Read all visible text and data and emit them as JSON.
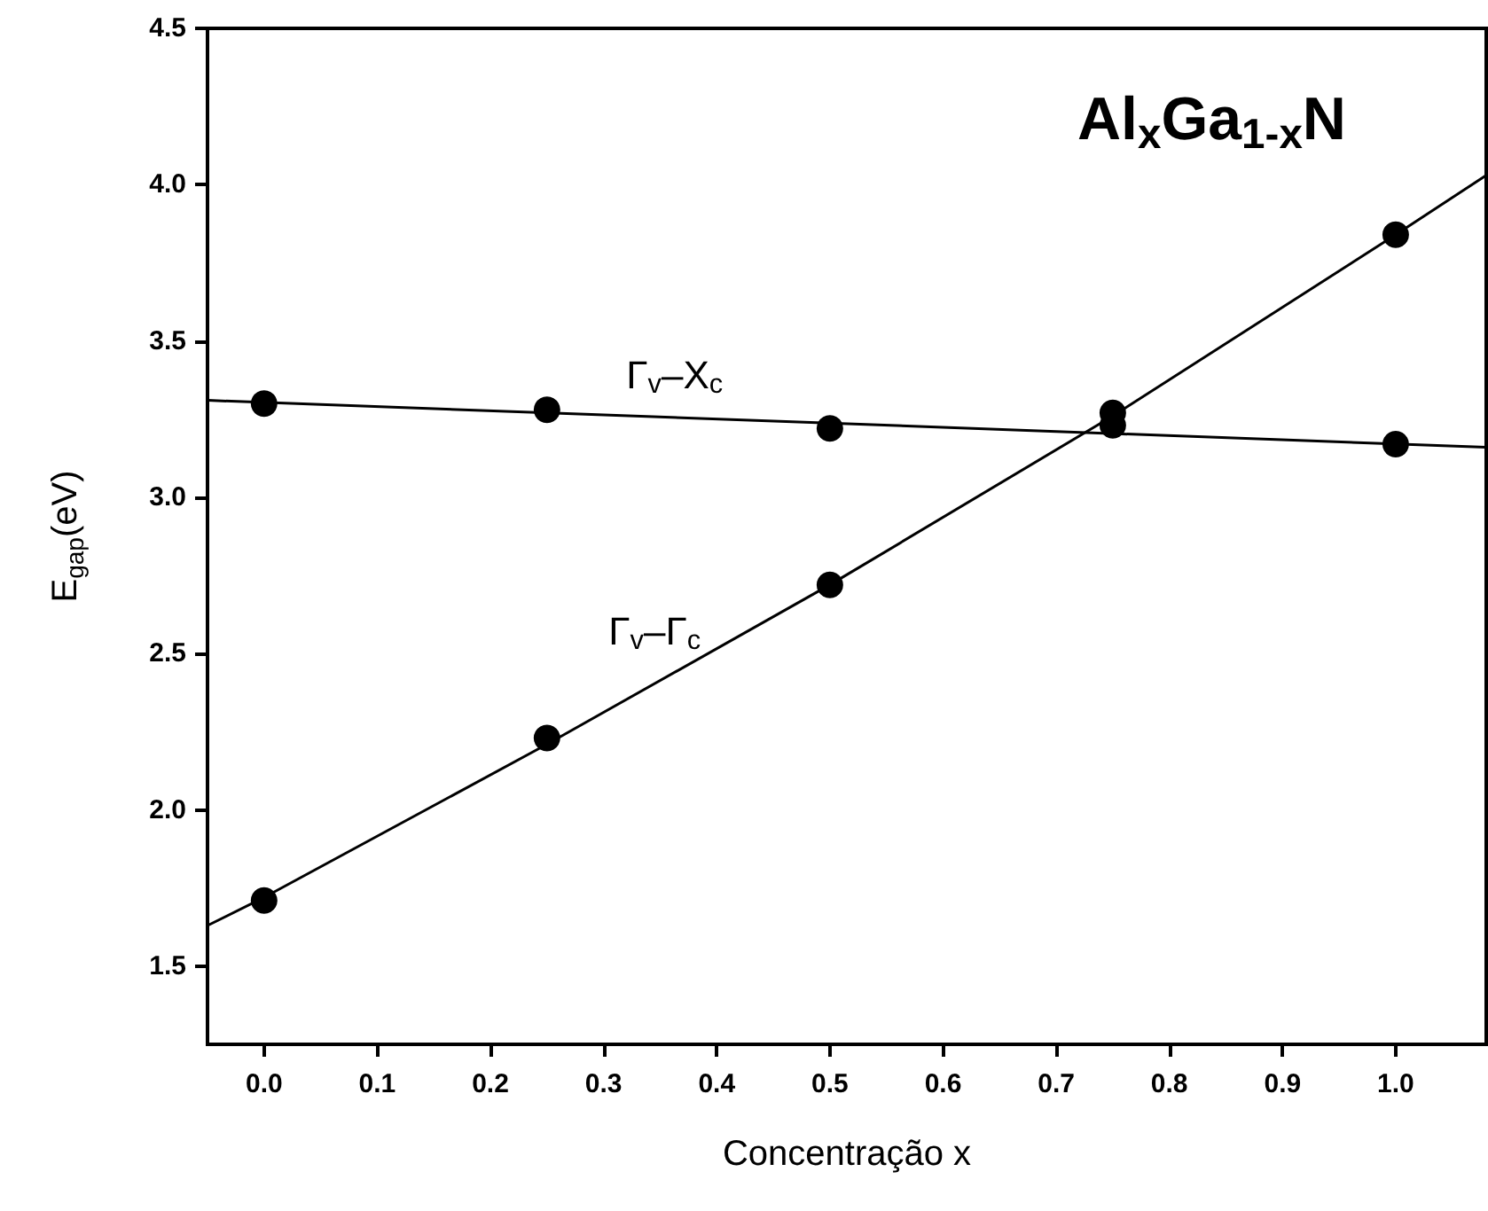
{
  "chart_data": {
    "type": "scatter",
    "title": "Al$_{x}$Ga$_{1-x}$N",
    "xlabel": "Concentração x",
    "ylabel": "E$_{gap}$(eV)",
    "xlim": [
      -0.05,
      1.08
    ],
    "xticks": [
      {
        "value": 0,
        "label": "0.0"
      },
      0.1,
      0.2,
      0.3,
      0.4,
      0.5,
      0.6,
      0.7,
      0.8,
      0.9,
      {
        "value": 1,
        "label": "1.0"
      }
    ],
    "ylim": [
      1.25,
      4.5
    ],
    "yticks": [
      1.5,
      {
        "value": 2,
        "label": "2.0"
      },
      2.5,
      {
        "value": 3,
        "label": "3.0"
      },
      3.5,
      {
        "value": 4,
        "label": "4.0"
      },
      4.5
    ],
    "grid": false,
    "legend": false,
    "marker": "circle",
    "series": [
      {
        "name": "Γ$_{v}$–X$_{c}$",
        "color": "#000000",
        "x": [
          0,
          0.25,
          0.5,
          0.75,
          1.0
        ],
        "values": [
          3.3,
          3.28,
          3.22,
          3.23,
          3.17
        ]
      },
      {
        "name": "Γ$_{v}$–Γ$_{c}$",
        "color": "#000000",
        "x": [
          0,
          0.25,
          0.5,
          0.75,
          1.0
        ],
        "values": [
          1.71,
          2.23,
          2.72,
          3.27,
          3.84
        ]
      },
      {
        "type": "line",
        "color": "#000000",
        "marker": "none",
        "line_style": "solid",
        "x": [
          -0.05,
          1.08
        ],
        "values": [
          3.31,
          3.16
        ]
      },
      {
        "type": "line",
        "color": "#000000",
        "marker": "none",
        "line_style": "solid",
        "x": [
          -0.05,
          0,
          0.25,
          0.5,
          0.75,
          1.0,
          1.08
        ],
        "values": [
          1.63,
          1.72,
          2.21,
          2.72,
          3.26,
          3.84,
          4.03
        ]
      }
    ]
  }
}
